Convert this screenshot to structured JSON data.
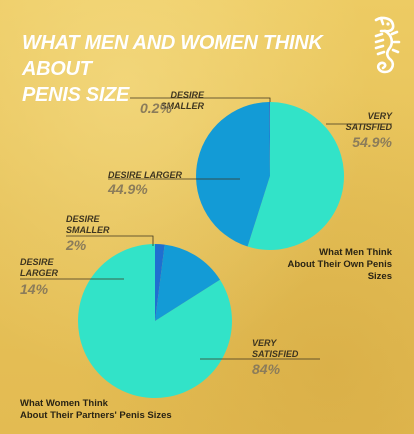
{
  "title": {
    "line1": "WHAT MEN AND WOMEN THINK ABOUT",
    "line2": "PENIS SIZE"
  },
  "colors": {
    "very_satisfied": "#32e3c8",
    "desire_larger": "#139bd6",
    "desire_smaller": "#1f6fd0",
    "background": "#e8c45c"
  },
  "logo": {
    "icon": "seahorse-icon"
  },
  "chart_data": [
    {
      "type": "pie",
      "title": "What Men Think About Their Own Penis Sizes",
      "title_lines": [
        "What Men Think",
        "About Their Own Penis Sizes"
      ],
      "slices": [
        {
          "name": "Very Satisfied",
          "label_lines": [
            "VERY",
            "SATISFIED"
          ],
          "value": 54.9,
          "display": "54.9%",
          "color": "#32e3c8"
        },
        {
          "name": "Desire Larger",
          "label_lines": [
            "DESIRE LARGER"
          ],
          "value": 44.9,
          "display": "44.9%",
          "color": "#139bd6"
        },
        {
          "name": "Desire Smaller",
          "label_lines": [
            "DESIRE SMALLER"
          ],
          "value": 0.2,
          "display": "0.2%",
          "color": "#1f6fd0"
        }
      ]
    },
    {
      "type": "pie",
      "title": "What Women Think About Their Partners' Penis Sizes",
      "title_lines": [
        "What Women Think",
        "About Their Partners' Penis Sizes"
      ],
      "slices": [
        {
          "name": "Very Satisfied",
          "label_lines": [
            "VERY",
            "SATISFIED"
          ],
          "value": 84,
          "display": "84%",
          "color": "#32e3c8"
        },
        {
          "name": "Desire Larger",
          "label_lines": [
            "DESIRE",
            "LARGER"
          ],
          "value": 14,
          "display": "14%",
          "color": "#139bd6"
        },
        {
          "name": "Desire Smaller",
          "label_lines": [
            "DESIRE",
            "SMALLER"
          ],
          "value": 2,
          "display": "2%",
          "color": "#1f6fd0"
        }
      ]
    }
  ]
}
